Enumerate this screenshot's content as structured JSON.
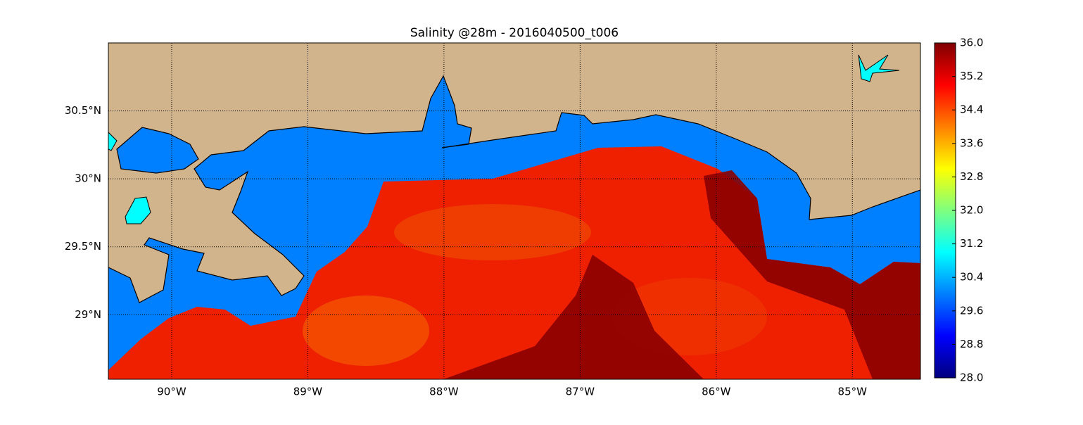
{
  "chart_data": {
    "type": "map",
    "title": "Salinity @28m - 2016040500_t006",
    "xlim": [
      -90.465,
      -84.5
    ],
    "ylim": [
      28.525,
      31.0
    ],
    "xticks": [
      {
        "value": -90,
        "label": "90°W"
      },
      {
        "value": -89,
        "label": "89°W"
      },
      {
        "value": -88,
        "label": "88°W"
      },
      {
        "value": -87,
        "label": "87°W"
      },
      {
        "value": -86,
        "label": "86°W"
      },
      {
        "value": -85,
        "label": "85°W"
      }
    ],
    "yticks": [
      {
        "value": 29,
        "label": "29°N"
      },
      {
        "value": 29.5,
        "label": "29.5°N"
      },
      {
        "value": 30,
        "label": "30°N"
      },
      {
        "value": 30.5,
        "label": "30.5°N"
      }
    ],
    "grid": true,
    "colorbar": {
      "colormap": "jet",
      "lim": [
        28,
        36
      ],
      "ticks": [
        {
          "value": 28,
          "label": "28.0"
        },
        {
          "value": 28.8,
          "label": "28.8"
        },
        {
          "value": 29.6,
          "label": "29.6"
        },
        {
          "value": 30.4,
          "label": "30.4"
        },
        {
          "value": 31.2,
          "label": "31.2"
        },
        {
          "value": 32,
          "label": "32.0"
        },
        {
          "value": 32.8,
          "label": "32.8"
        },
        {
          "value": 33.6,
          "label": "33.6"
        },
        {
          "value": 34.4,
          "label": "34.4"
        },
        {
          "value": 35.2,
          "label": "35.2"
        },
        {
          "value": 36,
          "label": "36.0"
        }
      ]
    }
  }
}
